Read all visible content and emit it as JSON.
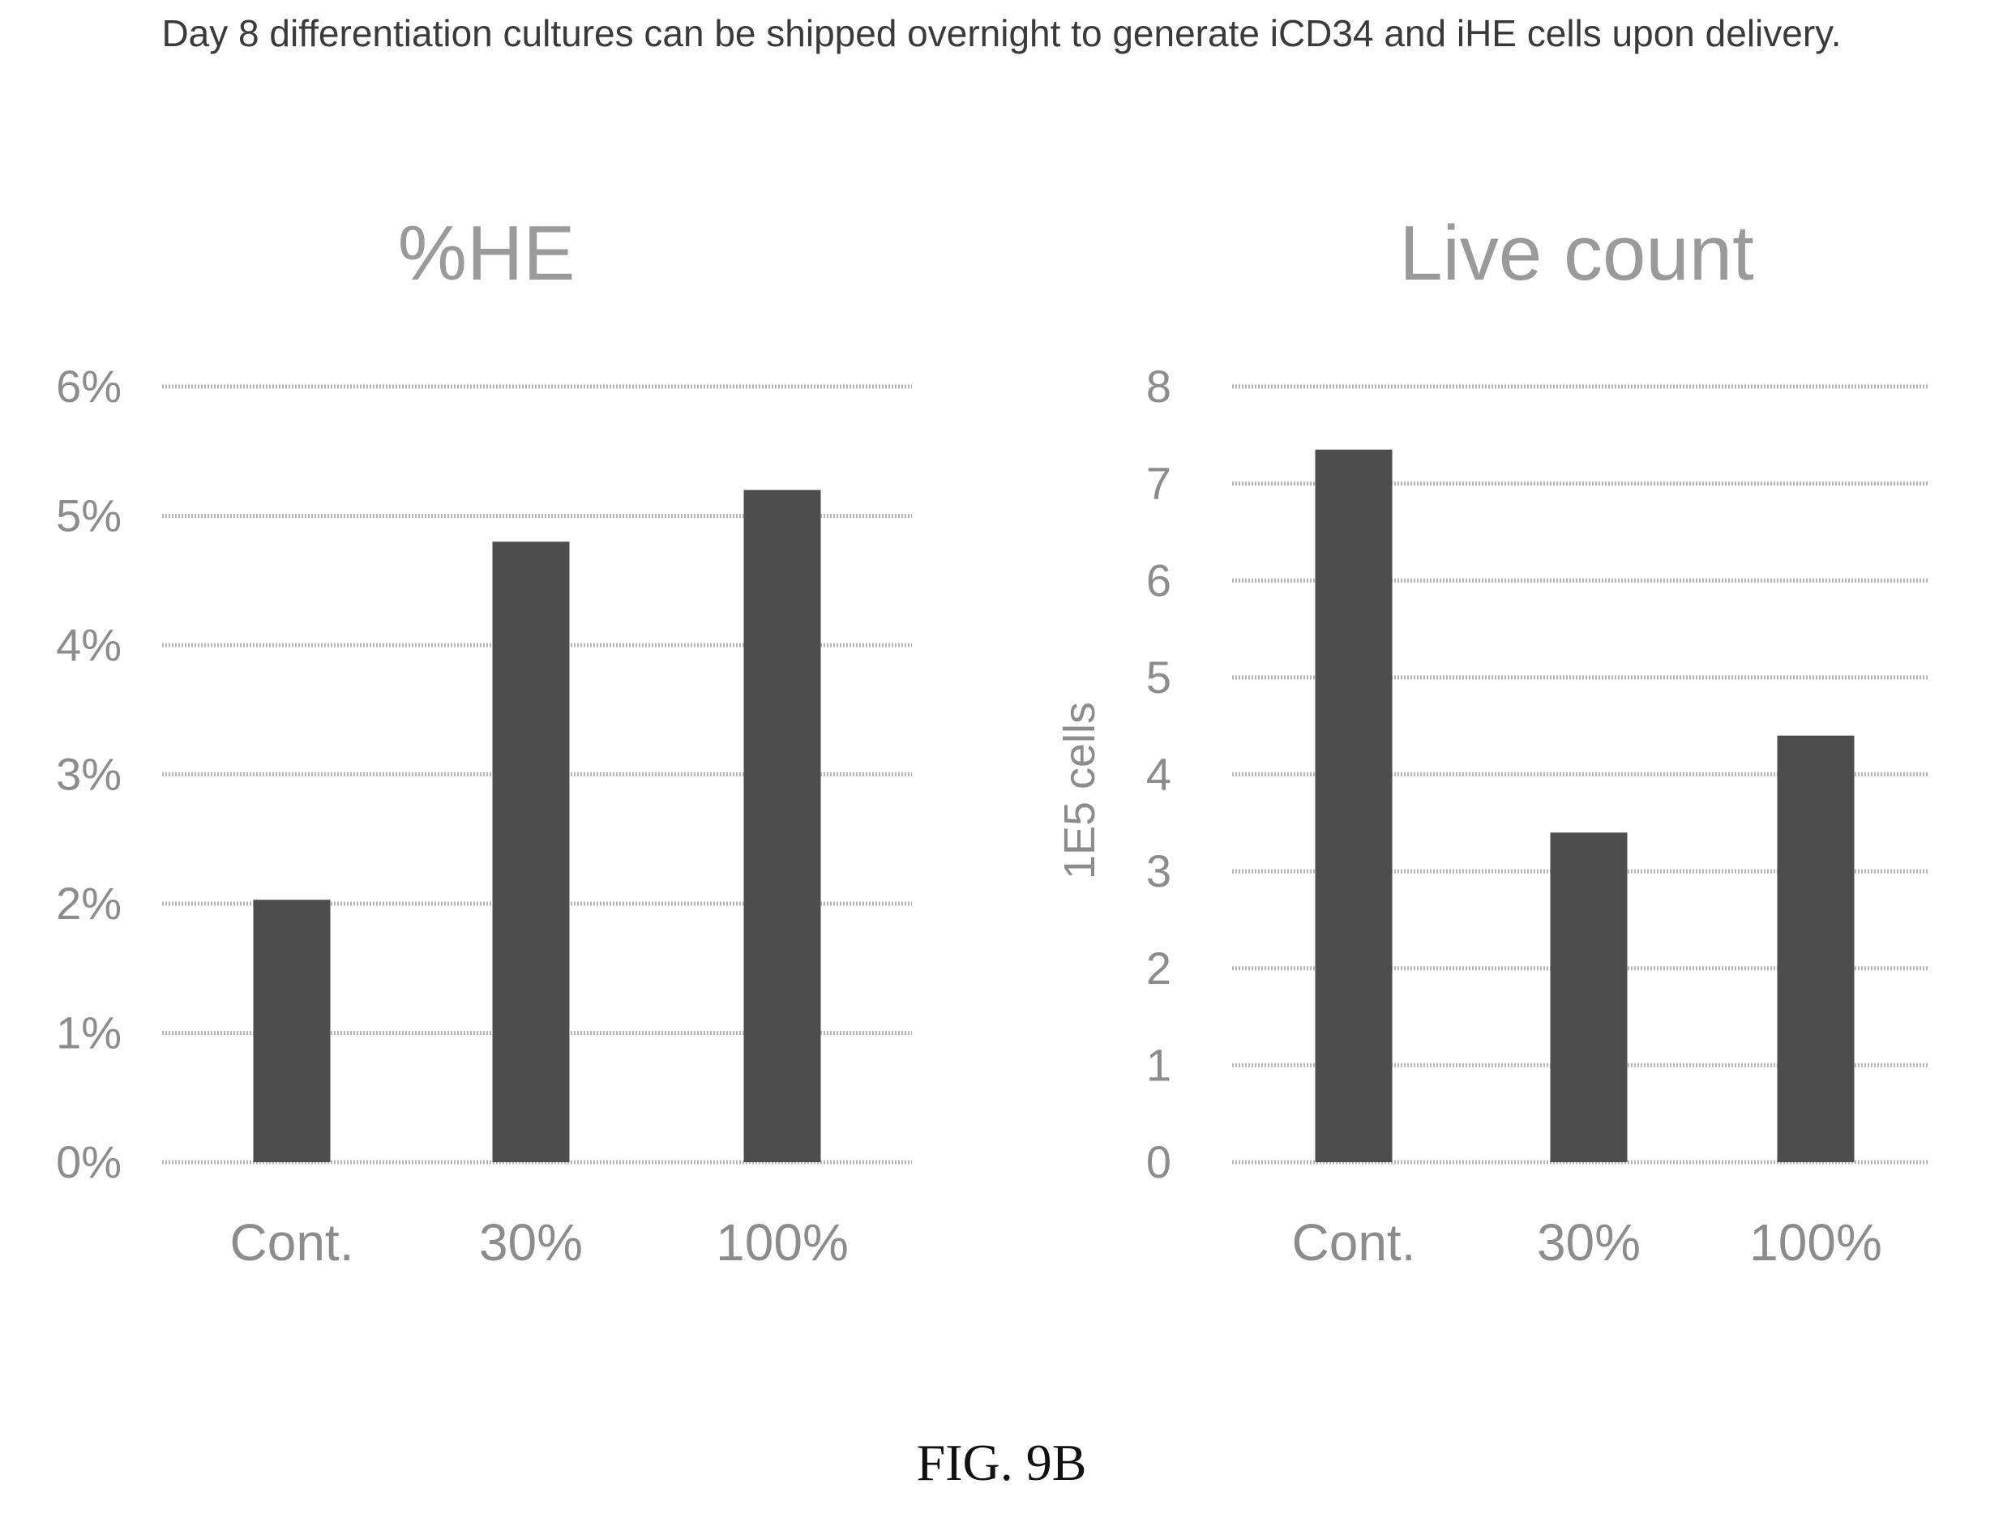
{
  "caption": "Day 8 differentiation cultures can be shipped overnight to generate iCD34 and iHE cells upon delivery.",
  "figure_label": "FIG. 9B",
  "bar_color": "#4d4d4d",
  "chart_data": [
    {
      "type": "bar",
      "title": "%HE",
      "categories": [
        "Cont.",
        "30%",
        "100%"
      ],
      "values": [
        2.03,
        4.8,
        5.2
      ],
      "ylim": [
        0,
        6
      ],
      "yticks": [
        0,
        1,
        2,
        3,
        4,
        5,
        6
      ],
      "ytick_labels": [
        "0%",
        "1%",
        "2%",
        "3%",
        "4%",
        "5%",
        "6%"
      ],
      "ylabel": "",
      "xlabel": "",
      "grid": true
    },
    {
      "type": "bar",
      "title": "Live count",
      "categories": [
        "Cont.",
        "30%",
        "100%"
      ],
      "values": [
        7.35,
        3.4,
        4.4
      ],
      "ylim": [
        0,
        8
      ],
      "yticks": [
        0,
        1,
        2,
        3,
        4,
        5,
        6,
        7,
        8
      ],
      "ytick_labels": [
        "0",
        "1",
        "2",
        "3",
        "4",
        "5",
        "6",
        "7",
        "8"
      ],
      "ylabel": "1E5 cells",
      "xlabel": "",
      "grid": true
    }
  ]
}
